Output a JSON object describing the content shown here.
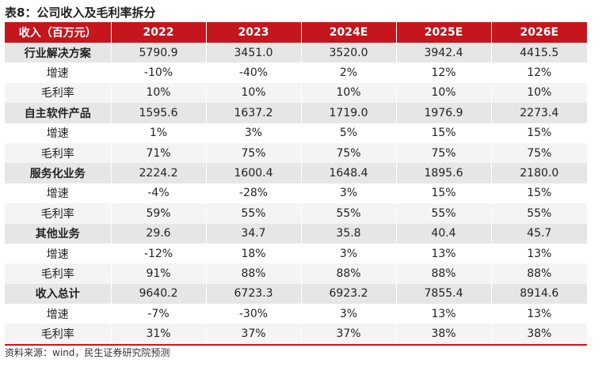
{
  "title": "表8：公司收入及毛利率拆分",
  "header": [
    "收入（百万元）",
    "2022",
    "2023",
    "2024E",
    "2025E",
    "2026E"
  ],
  "rows": [
    {
      "label": "行业解决方案",
      "type": "main",
      "values": [
        "5790.9",
        "3451.0",
        "3520.0",
        "3942.4",
        "4415.5"
      ]
    },
    {
      "label": "增速",
      "type": "sub",
      "values": [
        "-10%",
        "-40%",
        "2%",
        "12%",
        "12%"
      ]
    },
    {
      "label": "毛利率",
      "type": "sub",
      "values": [
        "10%",
        "10%",
        "10%",
        "10%",
        "10%"
      ]
    },
    {
      "label": "自主软件产品",
      "type": "main",
      "values": [
        "1595.6",
        "1637.2",
        "1719.0",
        "1976.9",
        "2273.4"
      ]
    },
    {
      "label": "增速",
      "type": "sub",
      "values": [
        "1%",
        "3%",
        "5%",
        "15%",
        "15%"
      ]
    },
    {
      "label": "毛利率",
      "type": "sub",
      "values": [
        "71%",
        "75%",
        "75%",
        "75%",
        "75%"
      ]
    },
    {
      "label": "服务化业务",
      "type": "main",
      "values": [
        "2224.2",
        "1600.4",
        "1648.4",
        "1895.6",
        "2180.0"
      ]
    },
    {
      "label": "增速",
      "type": "sub",
      "values": [
        "-4%",
        "-28%",
        "3%",
        "15%",
        "15%"
      ]
    },
    {
      "label": "毛利率",
      "type": "sub",
      "values": [
        "59%",
        "55%",
        "55%",
        "55%",
        "55%"
      ]
    },
    {
      "label": "其他业务",
      "type": "main",
      "values": [
        "29.6",
        "34.7",
        "35.8",
        "40.4",
        "45.7"
      ]
    },
    {
      "label": "增速",
      "type": "sub",
      "values": [
        "-12%",
        "18%",
        "3%",
        "13%",
        "13%"
      ]
    },
    {
      "label": "毛利率",
      "type": "sub",
      "values": [
        "91%",
        "88%",
        "88%",
        "88%",
        "88%"
      ]
    },
    {
      "label": "收入总计",
      "type": "main",
      "values": [
        "9640.2",
        "6723.3",
        "6923.2",
        "7855.4",
        "8914.6"
      ]
    },
    {
      "label": "增速",
      "type": "sub",
      "values": [
        "-7%",
        "-30%",
        "3%",
        "13%",
        "13%"
      ]
    },
    {
      "label": "毛利率",
      "type": "sub",
      "values": [
        "31%",
        "37%",
        "37%",
        "38%",
        "38%"
      ]
    }
  ],
  "source": "资料来源：wind，民生证券研究院预测",
  "colors": {
    "header_bg": "#c4161c",
    "main_row_bg": "#e6e6e6",
    "alt_row_bg": "#f4f4f4"
  }
}
